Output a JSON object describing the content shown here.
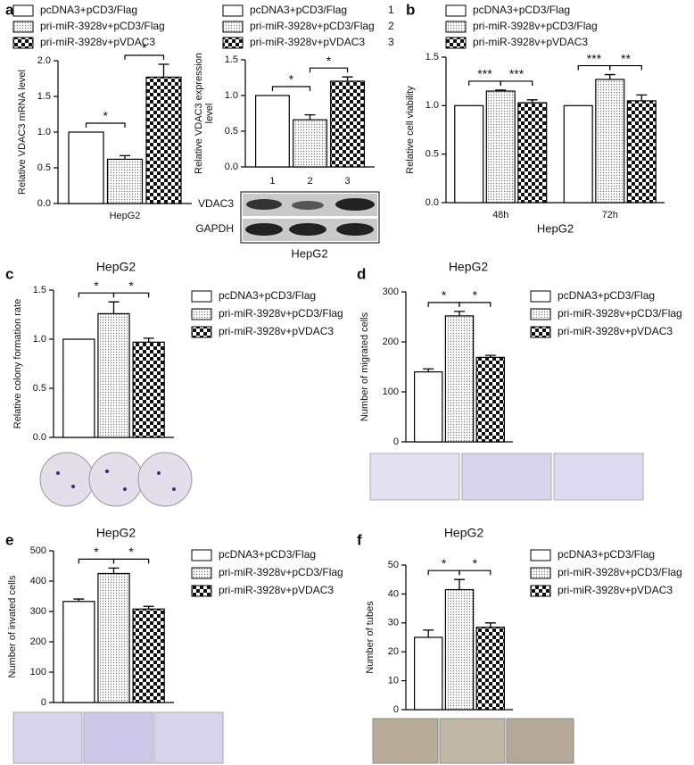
{
  "chart_data": [
    {
      "type": "bar",
      "panel": "a",
      "ylabel": [
        "Relative VDAC3 mRNA level"
      ],
      "categories": [
        "HepG2"
      ],
      "ylim": [
        0,
        2
      ],
      "yticks": [
        {
          "value": 0,
          "label": "0.0"
        },
        0.5,
        {
          "value": 1,
          "label": "1.0"
        },
        1.5,
        {
          "value": 2,
          "label": "2.0"
        }
      ],
      "series": [
        {
          "name": "pcDNA3+pCD3/Flag",
          "fill": "none",
          "values": [
            1
          ]
        },
        {
          "name": "pri-miR-3928v+pCD3/Flag",
          "fill": "dots",
          "values": [
            0.62
          ],
          "errors": [
            0.05
          ]
        },
        {
          "name": "pri-miR-3928v+pVDAC3",
          "fill": "checker",
          "values": [
            1.77
          ],
          "errors": [
            0.18
          ]
        }
      ],
      "significance": [
        {
          "label": "*",
          "group": 0,
          "from": 0,
          "to": 1
        },
        {
          "label": "*",
          "group": 0,
          "from": 1,
          "to": 2
        }
      ]
    },
    {
      "type": "bar",
      "ylabel": [
        "Relative VDAC3 expression",
        "level"
      ],
      "categories": [
        null
      ],
      "bar_labels": [
        "1",
        "2",
        "3"
      ],
      "ylim": [
        0,
        1.5
      ],
      "yticks": [
        {
          "value": 0,
          "label": "0.0"
        },
        0.5,
        {
          "value": 1,
          "label": "1.0"
        },
        1.5
      ],
      "series": [
        {
          "name": "pcDNA3+pCD3/Flag",
          "fill": "none",
          "values": [
            1
          ]
        },
        {
          "name": "pri-miR-3928v+pCD3/Flag",
          "fill": "dots",
          "values": [
            0.66
          ],
          "errors": [
            0.07
          ]
        },
        {
          "name": "pri-miR-3928v+pVDAC3",
          "fill": "checker",
          "values": [
            1.2
          ],
          "errors": [
            0.06
          ]
        }
      ],
      "significance": [
        {
          "label": "*",
          "group": 0,
          "from": 0,
          "to": 1
        },
        {
          "label": "*",
          "group": 0,
          "from": 1,
          "to": 2
        }
      ],
      "blot": {
        "rows": [
          "VDAC3",
          "GAPDH"
        ],
        "caption": "HepG2"
      }
    },
    {
      "type": "bar",
      "panel": "b",
      "ylabel": [
        "Relative cell viability"
      ],
      "categories": [
        "48h",
        "72h"
      ],
      "xlabel": "HepG2",
      "ylim": [
        0,
        1.5
      ],
      "yticks": [
        {
          "value": 0,
          "label": "0.0"
        },
        0.5,
        {
          "value": 1,
          "label": "1.0"
        },
        1.5
      ],
      "series": [
        {
          "name": "pcDNA3+pCD3/Flag",
          "fill": "none",
          "values": [
            1,
            1
          ]
        },
        {
          "name": "pri-miR-3928v+pCD3/Flag",
          "fill": "dots",
          "values": [
            1.15,
            1.27
          ],
          "errors": [
            0.01,
            0.05
          ]
        },
        {
          "name": "pri-miR-3928v+pVDAC3",
          "fill": "checker",
          "values": [
            1.03,
            1.05
          ],
          "errors": [
            0.03,
            0.06
          ]
        }
      ],
      "significance": [
        {
          "label": "***",
          "group": 0,
          "from": 0,
          "to": 1
        },
        {
          "label": "***",
          "group": 0,
          "from": 1,
          "to": 2
        },
        {
          "label": "***",
          "group": 1,
          "from": 0,
          "to": 1
        },
        {
          "label": "**",
          "group": 1,
          "from": 1,
          "to": 2
        }
      ]
    },
    {
      "type": "bar",
      "panel": "c",
      "title": "HepG2",
      "ylabel": [
        "Relative colony formation rate"
      ],
      "categories": [
        null
      ],
      "ylim": [
        0,
        1.5
      ],
      "yticks": [
        {
          "value": 0,
          "label": "0.0"
        },
        0.5,
        {
          "value": 1,
          "label": "1.0"
        },
        1.5
      ],
      "series": [
        {
          "name": "pcDNA3+pCD3/Flag",
          "fill": "none",
          "values": [
            1
          ]
        },
        {
          "name": "pri-miR-3928v+pCD3/Flag",
          "fill": "dots",
          "values": [
            1.26
          ],
          "errors": [
            0.12
          ]
        },
        {
          "name": "pri-miR-3928v+pVDAC3",
          "fill": "checker",
          "values": [
            0.97
          ],
          "errors": [
            0.04
          ]
        }
      ],
      "significance": [
        {
          "label": "*",
          "group": 0,
          "from": 0,
          "to": 1
        },
        {
          "label": "*",
          "group": 0,
          "from": 1,
          "to": 2
        }
      ]
    },
    {
      "type": "bar",
      "panel": "d",
      "title": "HepG2",
      "ylabel": [
        "Number of migrated cells"
      ],
      "categories": [
        null
      ],
      "ylim": [
        0,
        300
      ],
      "yticks": [
        0,
        100,
        200,
        300
      ],
      "series": [
        {
          "name": "pcDNA3+pCD3/Flag",
          "fill": "none",
          "values": [
            140
          ],
          "errors": [
            6
          ]
        },
        {
          "name": "pri-miR-3928v+pCD3/Flag",
          "fill": "dots",
          "values": [
            252
          ],
          "errors": [
            9
          ]
        },
        {
          "name": "pri-miR-3928v+pVDAC3",
          "fill": "checker",
          "values": [
            169
          ],
          "errors": [
            4
          ]
        }
      ],
      "significance": [
        {
          "label": "*",
          "group": 0,
          "from": 0,
          "to": 1
        },
        {
          "label": "*",
          "group": 0,
          "from": 1,
          "to": 2
        }
      ]
    },
    {
      "type": "bar",
      "panel": "e",
      "title": "HepG2",
      "ylabel": [
        "Number of invated cells"
      ],
      "categories": [
        null
      ],
      "ylim": [
        0,
        500
      ],
      "yticks": [
        0,
        100,
        200,
        300,
        400,
        500
      ],
      "series": [
        {
          "name": "pcDNA3+pCD3/Flag",
          "fill": "none",
          "values": [
            333
          ],
          "errors": [
            8
          ]
        },
        {
          "name": "pri-miR-3928v+pCD3/Flag",
          "fill": "dots",
          "values": [
            425
          ],
          "errors": [
            18
          ]
        },
        {
          "name": "pri-miR-3928v+pVDAC3",
          "fill": "checker",
          "values": [
            308
          ],
          "errors": [
            9
          ]
        }
      ],
      "significance": [
        {
          "label": "*",
          "group": 0,
          "from": 0,
          "to": 1
        },
        {
          "label": "*",
          "group": 0,
          "from": 1,
          "to": 2
        }
      ]
    },
    {
      "type": "bar",
      "panel": "f",
      "title": "HepG2",
      "ylabel": [
        "Number of tubes"
      ],
      "categories": [
        null
      ],
      "ylim": [
        0,
        50
      ],
      "yticks": [
        0,
        10,
        20,
        30,
        40,
        50
      ],
      "series": [
        {
          "name": "pcDNA3+pCD3/Flag",
          "fill": "none",
          "values": [
            25
          ],
          "errors": [
            2.5
          ]
        },
        {
          "name": "pri-miR-3928v+pCD3/Flag",
          "fill": "dots",
          "values": [
            41.5
          ],
          "errors": [
            3.5
          ]
        },
        {
          "name": "pri-miR-3928v+pVDAC3",
          "fill": "checker",
          "values": [
            28.5
          ],
          "errors": [
            1.5
          ]
        }
      ],
      "significance": [
        {
          "label": "*",
          "group": 0,
          "from": 0,
          "to": 1
        },
        {
          "label": "*",
          "group": 0,
          "from": 1,
          "to": 2
        }
      ]
    }
  ]
}
